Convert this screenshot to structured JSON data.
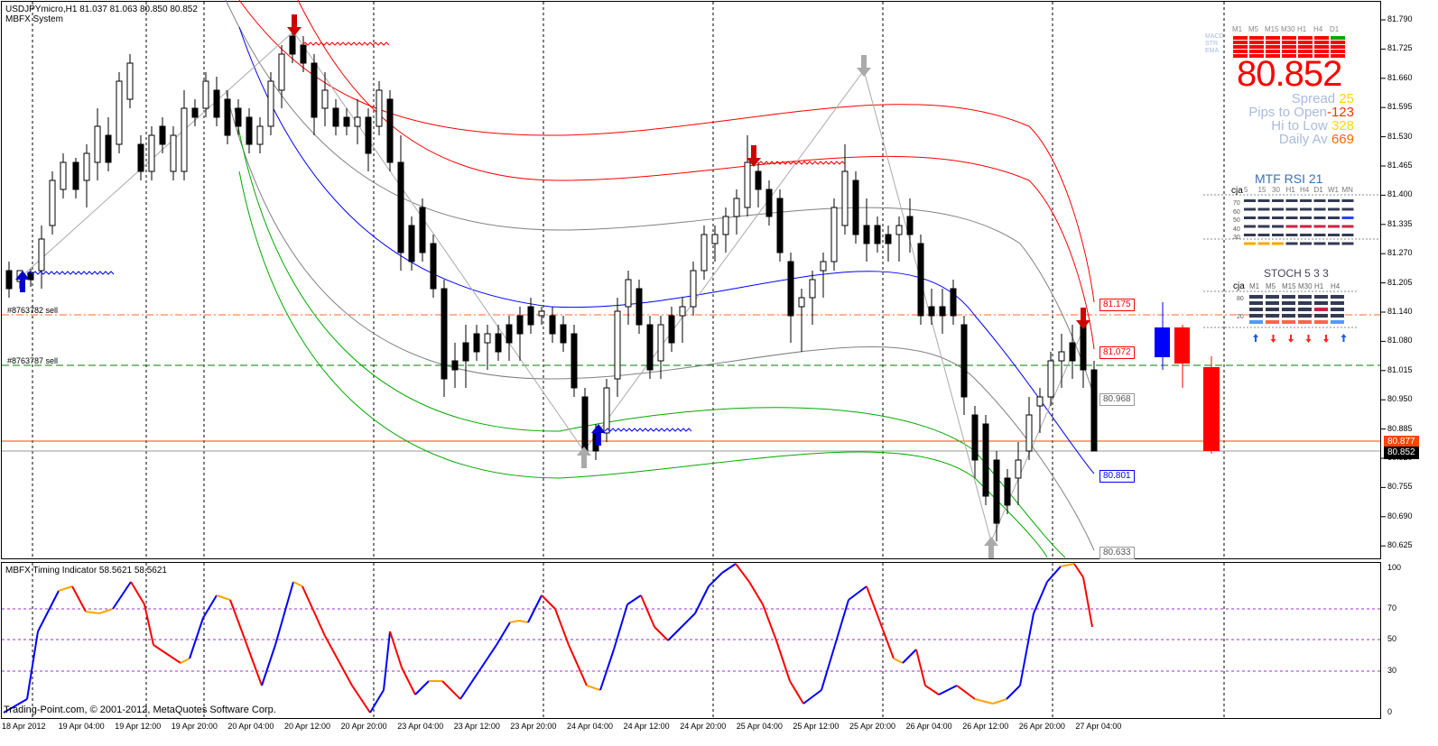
{
  "window": {
    "symbol_info": "USDJPYmicro,H1  81.037 81.063 80.850 80.852",
    "indicator_name": "MBFX System"
  },
  "sub_window": {
    "title": "MBFX Timing Indicator 58.5621 58.5621",
    "levels": [
      "100",
      "70",
      "50",
      "30",
      "0"
    ]
  },
  "copyright": "Trading-Point.com, © 2001-2012, MetaQuotes Software Corp.",
  "order_lines": [
    {
      "label": "#8763782 sell",
      "color": "#ff6a2a"
    },
    {
      "label": "#8763787 sell",
      "color": "#008000"
    }
  ],
  "price_axis": [
    "81.790",
    "81.725",
    "81.660",
    "81.595",
    "81.530",
    "81.465",
    "81.400",
    "81.335",
    "81.270",
    "81.205",
    "81.140",
    "81.080",
    "81.015",
    "80.950",
    "80.885",
    "80.820",
    "80.755",
    "80.690",
    "80.625"
  ],
  "current_price_tag": {
    "value": "80.852",
    "bg": "#000000"
  },
  "bid_line_tag": {
    "value": "80.877",
    "bg": "#ff4500"
  },
  "band_tags": [
    {
      "value": "81.175",
      "color": "#ff0000"
    },
    {
      "value": "81.072",
      "color": "#ff0000"
    },
    {
      "value": "80.968",
      "color": "#808080"
    },
    {
      "value": "80.801",
      "color": "#0000ff"
    },
    {
      "value": "80.633",
      "color": "#808080"
    }
  ],
  "time_axis": [
    "18 Apr 2012",
    "19 Apr 04:00",
    "19 Apr 12:00",
    "19 Apr 20:00",
    "20 Apr 04:00",
    "20 Apr 12:00",
    "20 Apr 20:00",
    "23 Apr 04:00",
    "23 Apr 12:00",
    "23 Apr 20:00",
    "24 Apr 04:00",
    "24 Apr 12:00",
    "24 Apr 20:00",
    "25 Apr 04:00",
    "25 Apr 12:00",
    "25 Apr 20:00",
    "26 Apr 04:00",
    "26 Apr 12:00",
    "26 Apr 20:00",
    "27 Apr 04:00"
  ],
  "dashboard": {
    "timeframes": [
      "M1",
      "M5",
      "M15",
      "M30",
      "H1",
      "H4",
      "D1"
    ],
    "row_labels": [
      "MACD",
      "STR",
      "EMA"
    ],
    "price": "80.852",
    "spread_label": "Spread",
    "spread_value": "25",
    "pips_open_label": "Pips to Open",
    "pips_open_value": "-123",
    "hi_low_label": "Hi to Low",
    "hi_low_value": "328",
    "daily_av_label": "Daily Av",
    "daily_av_value": "669",
    "rsi_title": "MTF RSI  21",
    "rsi_owner": "cja",
    "rsi_timeframes": [
      "5",
      "15",
      "30",
      "H1",
      "H4",
      "D1",
      "W1",
      "MN"
    ],
    "rsi_levels": [
      "70",
      "60",
      "50",
      "40",
      "30"
    ],
    "stoch_title": "STOCH  5 3 3",
    "stoch_owner": "cja",
    "stoch_timeframes": [
      "M1",
      "M5",
      "M15",
      "M30",
      "H1",
      "H4"
    ],
    "stoch_levels": [
      "80",
      "20"
    ],
    "arrows": [
      "up",
      "down",
      "down",
      "down",
      "down",
      "up"
    ]
  },
  "colors": {
    "up": "#0000ff",
    "down": "#ff0000",
    "accent": "#ff0000",
    "orange": "#ffa500"
  }
}
